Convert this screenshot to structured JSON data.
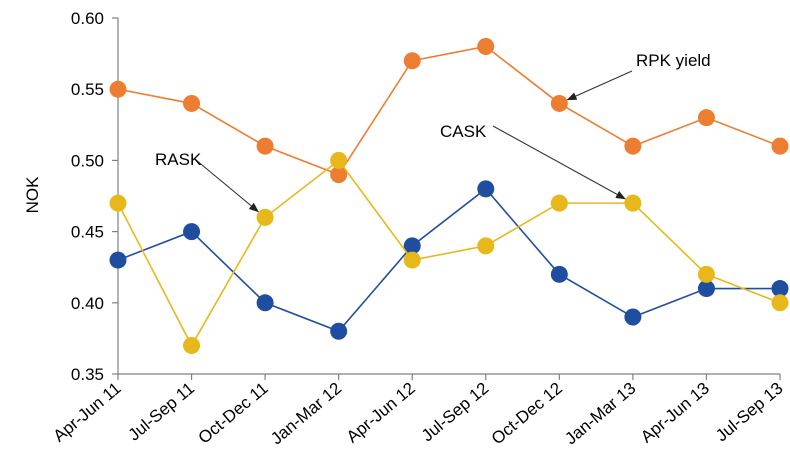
{
  "chart_data": {
    "type": "line",
    "title": "",
    "xlabel": "",
    "ylabel": "NOK",
    "ylim": [
      0.35,
      0.6
    ],
    "yticks": [
      "0.35",
      "0.40",
      "0.45",
      "0.50",
      "0.55",
      "0.60"
    ],
    "categories": [
      "Apr-Jun 11",
      "Jul-Sep 11",
      "Oct-Dec 11",
      "Jan-Mar 12",
      "Apr-Jun 12",
      "Jul-Sep 12",
      "Oct-Dec 12",
      "Jan-Mar 13",
      "Apr-Jun 13",
      "Jul-Sep 13"
    ],
    "grid": false,
    "series": [
      {
        "name": "RPK yield",
        "color": "#ED7D31",
        "values": [
          0.55,
          0.54,
          0.51,
          0.49,
          0.57,
          0.58,
          0.54,
          0.51,
          0.53,
          0.51
        ]
      },
      {
        "name": "RASK",
        "color": "#E8B81B",
        "values": [
          0.47,
          0.37,
          0.46,
          0.5,
          0.43,
          0.44,
          0.47,
          0.47,
          0.42,
          0.4
        ]
      },
      {
        "name": "CASK",
        "color": "#1F4EA1",
        "values": [
          0.43,
          0.45,
          0.4,
          0.38,
          0.44,
          0.48,
          0.42,
          0.39,
          0.41,
          0.41
        ]
      }
    ],
    "annotations": [
      {
        "text": "RPK yield",
        "target_series": 0,
        "target_index": 6
      },
      {
        "text": "RASK",
        "target_series": 1,
        "target_index": 2
      },
      {
        "text": "CASK",
        "target_series": 1,
        "target_index": 7
      }
    ]
  }
}
